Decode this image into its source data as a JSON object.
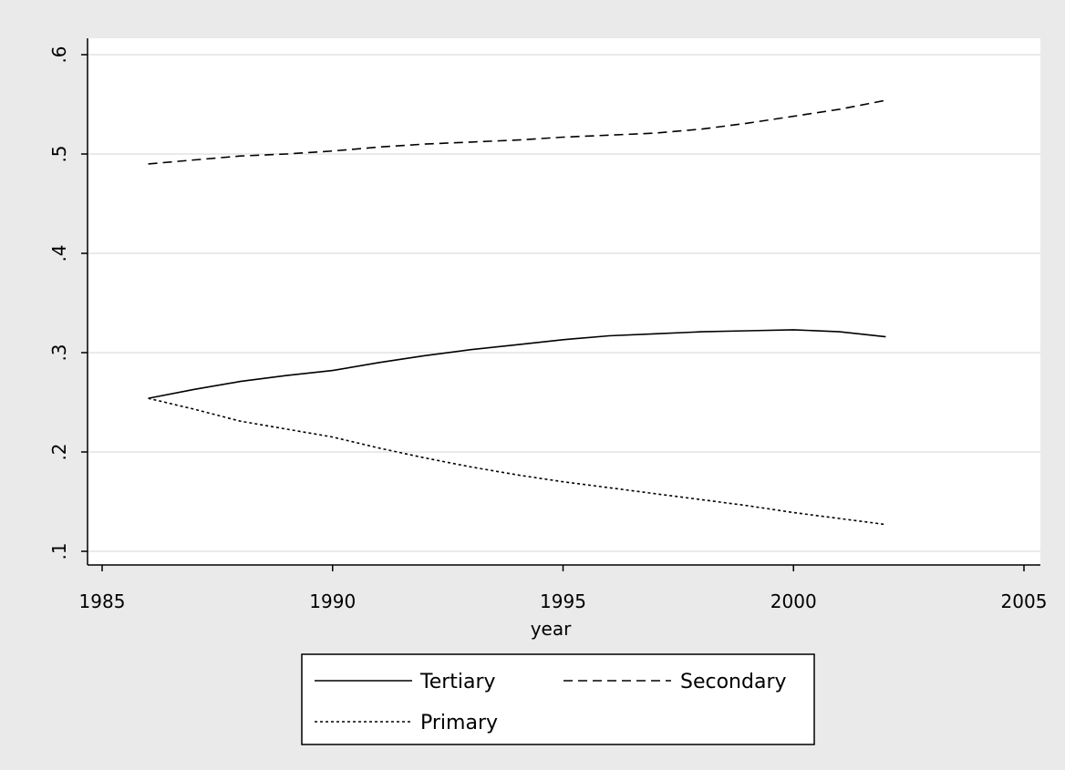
{
  "chart_data": {
    "type": "line",
    "title": "",
    "xlabel": "year",
    "ylabel": "",
    "xlim": [
      1985,
      2005
    ],
    "ylim": [
      0.1,
      0.6
    ],
    "xticks": [
      1985,
      1990,
      1995,
      2000,
      2005
    ],
    "yticks": [
      0.1,
      0.2,
      0.3,
      0.4,
      0.5,
      0.6
    ],
    "ytick_labels": [
      ".1",
      ".2",
      ".3",
      ".4",
      ".5",
      ".6"
    ],
    "grid": true,
    "legend_position": "bottom",
    "x": [
      1986,
      1987,
      1988,
      1989,
      1990,
      1991,
      1992,
      1993,
      1994,
      1995,
      1996,
      1997,
      1998,
      1999,
      2000,
      2001,
      2002
    ],
    "series": [
      {
        "name": "Tertiary",
        "dash": "solid",
        "values": [
          0.254,
          0.263,
          0.271,
          0.277,
          0.282,
          0.29,
          0.297,
          0.303,
          0.308,
          0.313,
          0.317,
          0.319,
          0.321,
          0.322,
          0.323,
          0.321,
          0.316
        ]
      },
      {
        "name": "Secondary",
        "dash": "dashed",
        "values": [
          0.49,
          0.494,
          0.498,
          0.5,
          0.503,
          0.507,
          0.51,
          0.512,
          0.514,
          0.517,
          0.519,
          0.521,
          0.525,
          0.531,
          0.538,
          0.545,
          0.554
        ]
      },
      {
        "name": "Primary",
        "dash": "dotted",
        "values": [
          0.254,
          0.243,
          0.231,
          0.223,
          0.215,
          0.204,
          0.194,
          0.185,
          0.177,
          0.17,
          0.164,
          0.158,
          0.152,
          0.146,
          0.139,
          0.133,
          0.127
        ]
      }
    ]
  }
}
